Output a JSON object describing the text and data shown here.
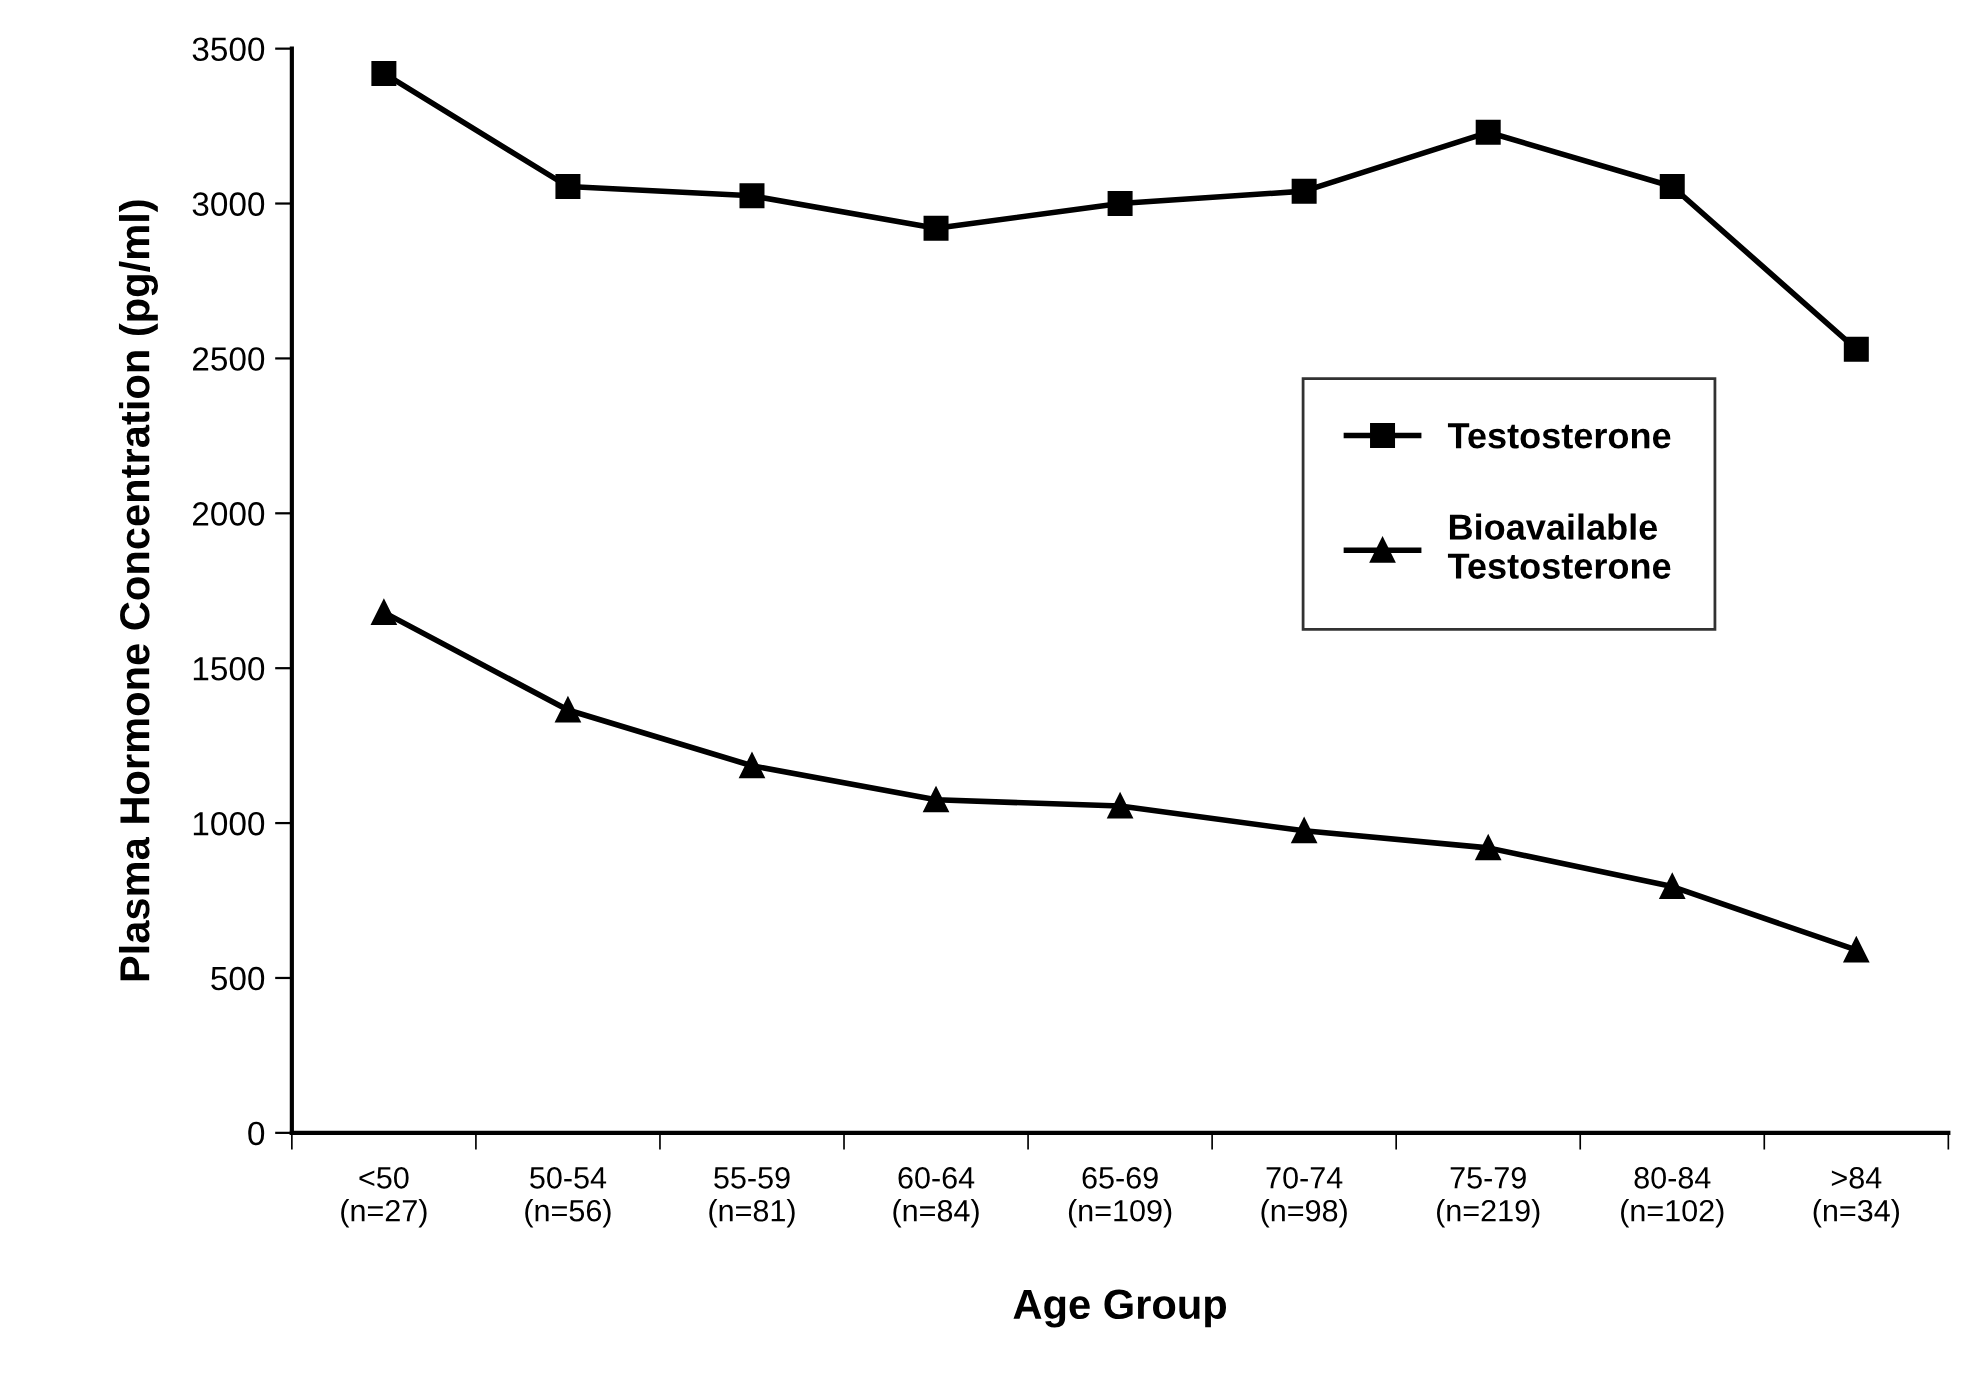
{
  "chart_data": {
    "type": "line",
    "xlabel": "Age Group",
    "ylabel": "Plasma Hormone Concentration (pg/ml)",
    "categories": [
      "<50\n(n=27)",
      "50-54\n(n=56)",
      "55-59\n(n=81)",
      "60-64\n(n=84)",
      "65-69\n(n=109)",
      "70-74\n(n=98)",
      "75-79\n(n=219)",
      "80-84\n(n=102)",
      ">84\n(n=34)"
    ],
    "series": [
      {
        "name": "Testosterone",
        "color": "#000000",
        "marker": "square",
        "values": [
          3420,
          3055,
          3025,
          2920,
          3000,
          3040,
          3230,
          3055,
          2530
        ]
      },
      {
        "name": "Bioavailable\nTestosterone",
        "color": "#000000",
        "marker": "triangle",
        "values": [
          1680,
          1365,
          1185,
          1075,
          1055,
          975,
          920,
          795,
          590
        ]
      }
    ],
    "ylim": [
      0,
      3500
    ],
    "yticks": [
      0,
      500,
      1000,
      1500,
      2000,
      2500,
      3000,
      3500
    ],
    "grid": false,
    "legend": "right",
    "line_style": "solid"
  }
}
